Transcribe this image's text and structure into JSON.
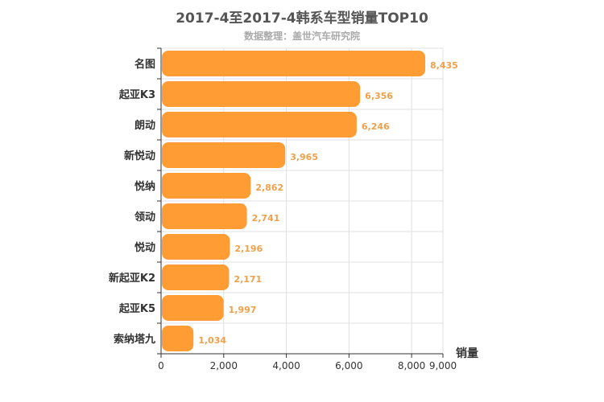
{
  "chart_data": {
    "type": "bar",
    "orientation": "horizontal",
    "title": "2017-4至2017-4韩系车型销量TOP10",
    "subtitle": "数据整理：盖世汽车研究院",
    "xlabel": "销量",
    "ylabel": "",
    "categories": [
      "名图",
      "起亚K3",
      "朗动",
      "新悦动",
      "悦纳",
      "领动",
      "悦动",
      "新起亚K2",
      "起亚K5",
      "索纳塔九"
    ],
    "values": [
      8435,
      6356,
      6246,
      3965,
      2862,
      2741,
      2196,
      2171,
      1997,
      1034
    ],
    "value_labels": [
      "8,435",
      "6,356",
      "6,246",
      "3,965",
      "2,862",
      "2,741",
      "2,196",
      "2,171",
      "1,997",
      "1,034"
    ],
    "xlim": [
      0,
      9000
    ],
    "x_ticks": [
      0,
      2000,
      4000,
      6000,
      8000,
      9000
    ],
    "x_tick_labels": [
      "0",
      "2,000",
      "4,000",
      "6,000",
      "8,000",
      "9,000"
    ],
    "grid": true,
    "bar_color": "#ff9c33",
    "label_color": "#f0a04a"
  }
}
